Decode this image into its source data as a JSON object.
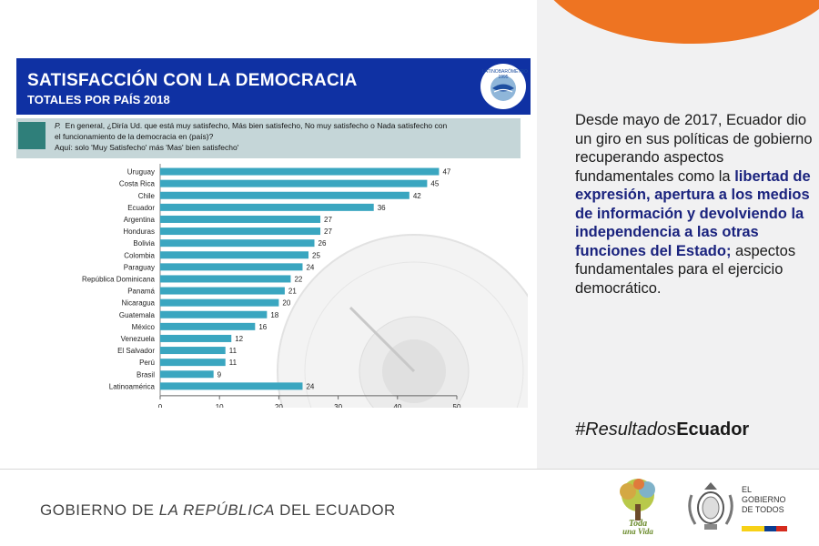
{
  "banner": {
    "title": "SATISFACCIÓN CON LA DEMOCRACIA",
    "subtitle": "TOTALES POR PAÍS 2018",
    "logo_text": "LATINOBARÓMETRO 1995"
  },
  "question": {
    "label": "P.",
    "line1": "En general, ¿Diría Ud. que está muy satisfecho, Más bien satisfecho, No muy satisfecho o Nada satisfecho con",
    "line2": "el funcionamiento de la democracia en (país)?",
    "line3": "Aquí: solo 'Muy Satisfecho' más 'Mas' bien satisfecho'"
  },
  "chart_data": {
    "type": "bar",
    "orientation": "horizontal",
    "categories": [
      "Uruguay",
      "Costa Rica",
      "Chile",
      "Ecuador",
      "Argentina",
      "Honduras",
      "Bolivia",
      "Colombia",
      "Paraguay",
      "República Dominicana",
      "Panamá",
      "Nicaragua",
      "Guatemala",
      "México",
      "Venezuela",
      "El Salvador",
      "Perú",
      "Brasil",
      "Latinoamérica"
    ],
    "values": [
      47,
      45,
      42,
      36,
      27,
      27,
      26,
      25,
      24,
      22,
      21,
      20,
      18,
      16,
      12,
      11,
      11,
      9,
      24
    ],
    "xlim": [
      0,
      50
    ],
    "xticks": [
      "0",
      "10",
      "20",
      "30",
      "40",
      "50"
    ],
    "bar_color": "#3aa6c0",
    "grid": false
  },
  "right_panel": {
    "text_intro": "Desde mayo de 2017, Ecuador dio un giro en sus políticas de gobierno recuperando aspectos fundamentales como la",
    "text_highlight": "libertad de expresión, apertura a los medios de información y devolviendo la independencia a las otras funciones del Estado;",
    "text_outro": "aspectos fundamentales para el ejercicio democrático.",
    "hashtag_prefix": "#Resultados",
    "hashtag_bold": "Ecuador"
  },
  "footer": {
    "gov_part1": "GOBIERNO DE ",
    "gov_part2": "LA REPÚBLICA",
    "gov_part3": " DEL ECUADOR",
    "tree_text_1": "Toda",
    "tree_text_2": "una Vida",
    "gob_line1": "EL",
    "gob_line2": "GOBIERNO",
    "gob_line3": "DE TODOS"
  },
  "colors": {
    "banner_blue": "#0f31a3",
    "accent_orange": "#ee7422",
    "highlight_navy": "#1a237e",
    "teal_square": "#2f7f7a"
  }
}
